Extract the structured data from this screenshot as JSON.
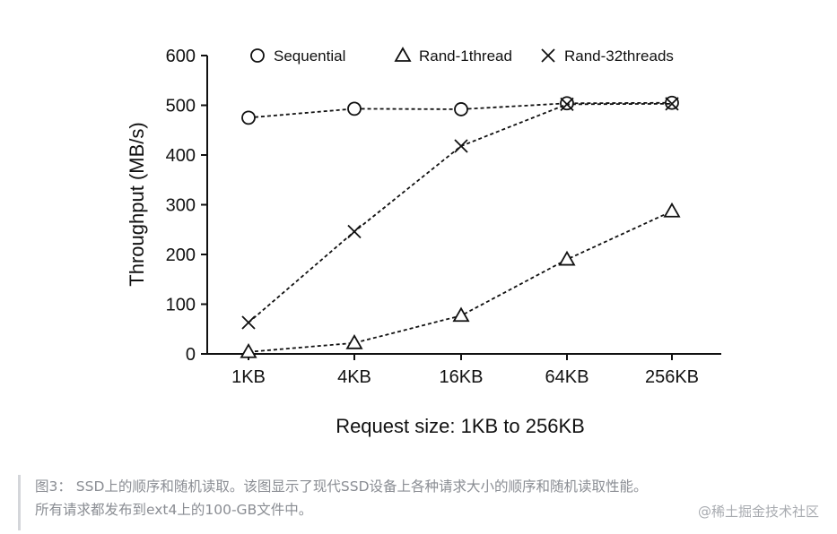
{
  "chart_data": {
    "type": "line",
    "xlabel": "Request size: 1KB to 256KB",
    "ylabel": "Throughput (MB/s)",
    "categories": [
      "1KB",
      "4KB",
      "16KB",
      "64KB",
      "256KB"
    ],
    "ylim": [
      0,
      600
    ],
    "yticks": [
      0,
      100,
      200,
      300,
      400,
      500,
      600
    ],
    "grid": false,
    "legend_position": "top",
    "series": [
      {
        "name": "Sequential",
        "marker": "circle",
        "values": [
          475,
          493,
          492,
          504,
          505
        ]
      },
      {
        "name": "Rand-1thread",
        "marker": "triangle",
        "values": [
          4,
          22,
          77,
          190,
          287
        ]
      },
      {
        "name": "Rand-32threads",
        "marker": "cross",
        "values": [
          63,
          246,
          418,
          502,
          503
        ]
      }
    ],
    "colors": {
      "line": "#111111",
      "axis": "#111111"
    }
  },
  "caption": {
    "line1": "图3： SSD上的顺序和随机读取。该图显示了现代SSD设备上各种请求大小的顺序和随机读取性能。",
    "line2": "所有请求都发布到ext4上的100-GB文件中。"
  },
  "watermark": "@稀土掘金技术社区"
}
